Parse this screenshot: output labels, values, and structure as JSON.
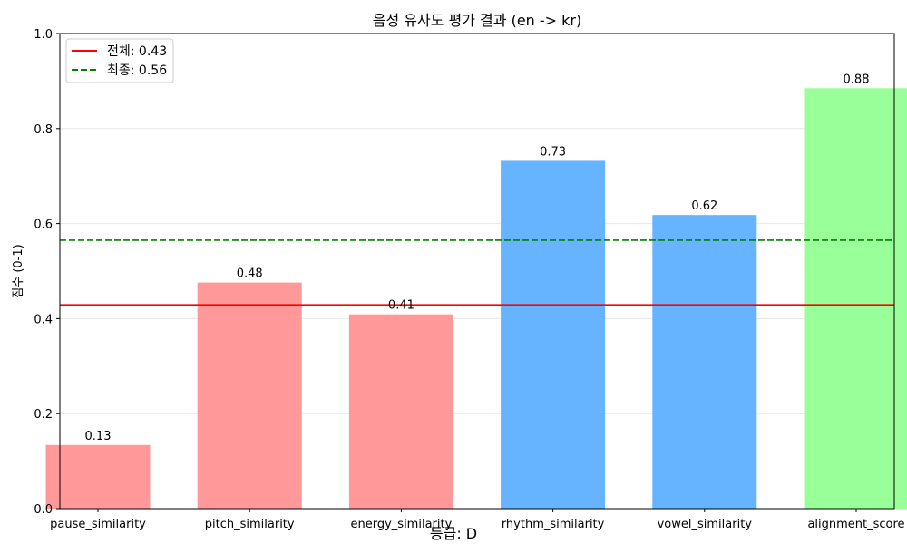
{
  "chart_data": {
    "type": "bar",
    "title": "음성 유사도 평가 결과 (en -> kr)",
    "xlabel": "등급: D",
    "ylabel": "점수 (0-1)",
    "ylim": [
      0,
      1.0
    ],
    "yticks": [
      "0.0",
      "0.2",
      "0.4",
      "0.6",
      "0.8",
      "1.0"
    ],
    "ytick_values": [
      0,
      0.2,
      0.4,
      0.6,
      0.8,
      1.0
    ],
    "grid": "horizontal",
    "categories": [
      "pause_similarity",
      "pitch_similarity",
      "energy_similarity",
      "rhythm_similarity",
      "vowel_similarity",
      "alignment_score"
    ],
    "values": [
      0.134,
      0.476,
      0.409,
      0.732,
      0.618,
      0.885
    ],
    "value_labels": [
      "0.13",
      "0.48",
      "0.41",
      "0.73",
      "0.62",
      "0.88"
    ],
    "bar_colors": [
      "#ff9999",
      "#ff9999",
      "#ff9999",
      "#66b3ff",
      "#66b3ff",
      "#99ff99"
    ],
    "reference_lines": [
      {
        "label": "전체: 0.43",
        "value": 0.429,
        "color": "#ff0000",
        "style": "solid"
      },
      {
        "label": "최종: 0.56",
        "value": 0.565,
        "color": "#008000",
        "style": "dashed"
      }
    ],
    "legend_position": "top-left"
  }
}
